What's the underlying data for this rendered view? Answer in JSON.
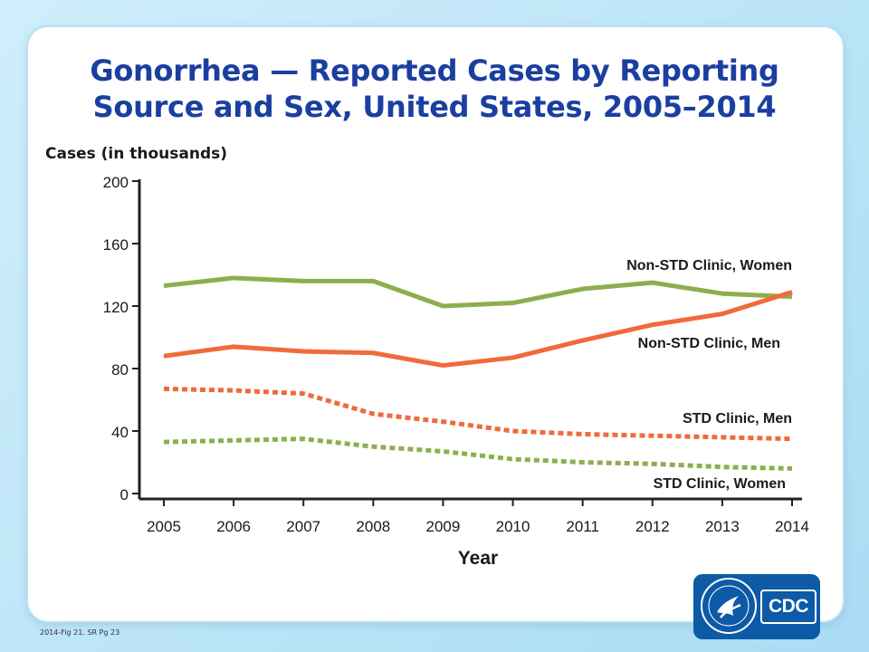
{
  "page": {
    "title_line1": "Gonorrhea — Reported Cases by Reporting",
    "title_line2": "Source and Sex, United States, 2005–2014",
    "footnote": "2014-Fig 21. SR Pg 23",
    "logo_text": "CDC",
    "colors": {
      "title": "#1a3fa0",
      "orange": "#f06a3c",
      "green": "#8dae4f",
      "logo": "#0d5aa7"
    }
  },
  "chart_data": {
    "type": "line",
    "title": "Gonorrhea — Reported Cases by Reporting Source and Sex, United States, 2005–2014",
    "xlabel": "Year",
    "ylabel": "Cases (in thousands)",
    "x": [
      "2005",
      "2006",
      "2007",
      "2008",
      "2009",
      "2010",
      "2011",
      "2012",
      "2013",
      "2014"
    ],
    "ylim": [
      0,
      200
    ],
    "yticks": [
      "0",
      "40",
      "80",
      "120",
      "160",
      "200"
    ],
    "grid": false,
    "series": [
      {
        "name": "Non-STD Clinic, Women",
        "color": "#8dae4f",
        "style": "solid",
        "values": [
          133,
          138,
          136,
          136,
          120,
          122,
          131,
          135,
          128,
          126
        ]
      },
      {
        "name": "Non-STD Clinic, Men",
        "color": "#f06a3c",
        "style": "solid",
        "values": [
          88,
          94,
          91,
          90,
          82,
          87,
          98,
          108,
          115,
          129
        ]
      },
      {
        "name": "STD Clinic, Men",
        "color": "#f06a3c",
        "style": "dashed",
        "values": [
          67,
          66,
          64,
          51,
          46,
          40,
          38,
          37,
          36,
          35
        ]
      },
      {
        "name": "STD Clinic, Women",
        "color": "#8dae4f",
        "style": "dashed",
        "values": [
          33,
          34,
          35,
          30,
          27,
          22,
          20,
          19,
          17,
          16
        ]
      }
    ]
  }
}
